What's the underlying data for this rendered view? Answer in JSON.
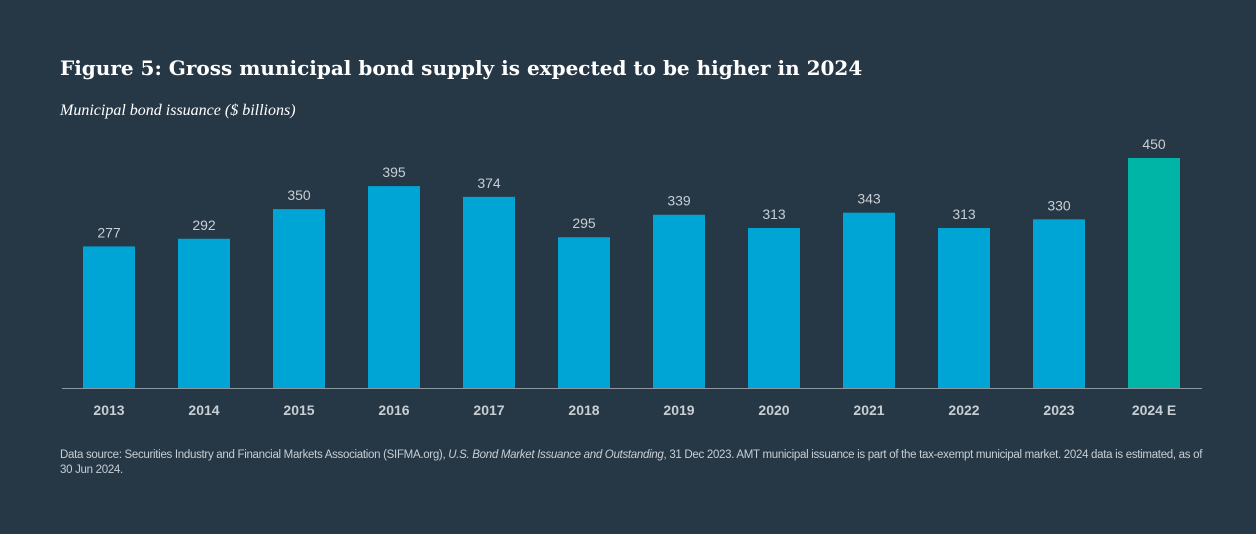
{
  "chart_data": {
    "type": "bar",
    "title": "Figure 5: Gross municipal bond supply is expected to be higher in 2024",
    "subtitle": "Municipal bond issuance ($ billions)",
    "categories": [
      "2013",
      "2014",
      "2015",
      "2016",
      "2017",
      "2018",
      "2019",
      "2020",
      "2021",
      "2022",
      "2023",
      "2024 E"
    ],
    "values": [
      277,
      292,
      350,
      395,
      374,
      295,
      339,
      313,
      343,
      313,
      330,
      450
    ],
    "estimated": [
      false,
      false,
      false,
      false,
      false,
      false,
      false,
      false,
      false,
      false,
      false,
      true
    ],
    "ylim": [
      0,
      450
    ],
    "grid": false,
    "colors": {
      "actual": "#00a5d6",
      "estimate": "#00b5a6",
      "background": "#263745"
    }
  },
  "source": {
    "prefix": "Data source: Securities Industry and Financial Markets Association (SIFMA.org), ",
    "italic": "U.S. Bond Market Issuance and Outstanding",
    "suffix": ", 31 Dec 2023. AMT municipal issuance is part of the tax-exempt municipal market. 2024 data is estimated, as of 30 Jun 2024."
  }
}
